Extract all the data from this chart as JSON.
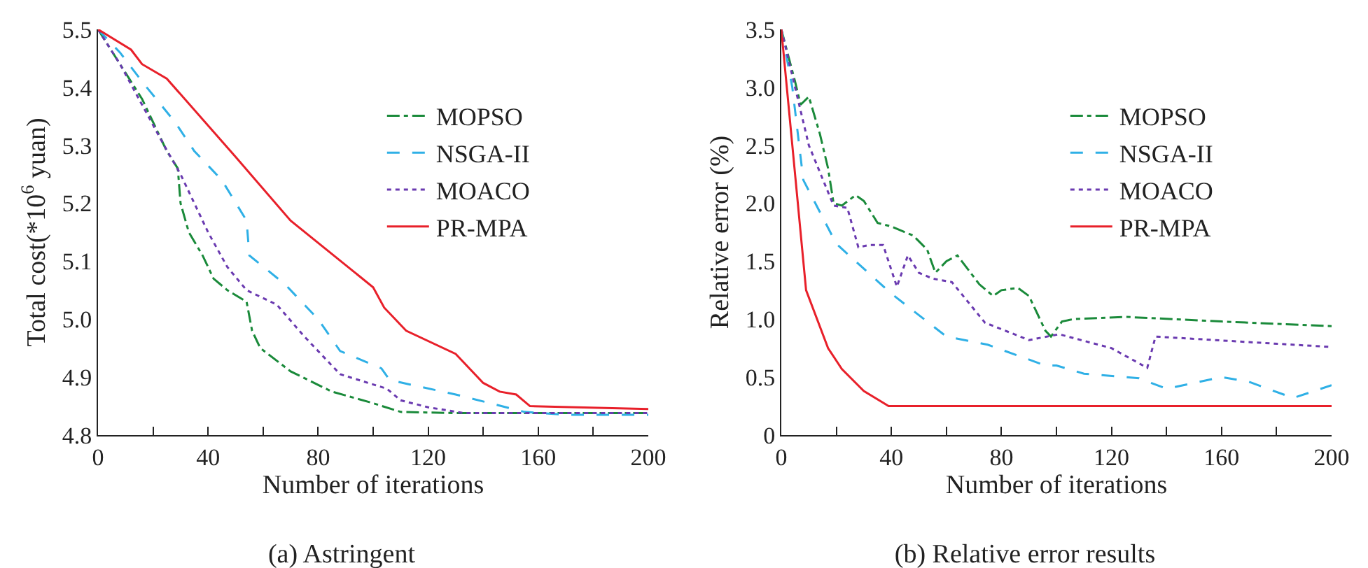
{
  "chart_data": [
    {
      "type": "line",
      "title": "(a) Astringent",
      "xlabel": "Number of iterations",
      "ylabel": "Total cost(*10$^{6}$ yuan)",
      "xlim": [
        0,
        200
      ],
      "ylim": [
        4.8,
        5.5
      ],
      "xticks": [
        0,
        {
          "value": 20,
          "label": null
        },
        40,
        {
          "value": 60,
          "label": null
        },
        80,
        {
          "value": 100,
          "label": null
        },
        120,
        {
          "value": 140,
          "label": null
        },
        160,
        {
          "value": 180,
          "label": null
        },
        200
      ],
      "yticks": [
        4.8,
        4.9,
        {
          "value": 5,
          "label": "5.0"
        },
        5.1,
        5.2,
        5.3,
        5.4,
        5.5
      ],
      "grid": false,
      "legend": "top right",
      "marker": "none",
      "series": [
        {
          "name": "MOPSO",
          "color": "#1a8a3a",
          "line_style": "dashdot",
          "x": [
            0,
            8,
            16,
            25,
            29,
            30,
            33,
            38,
            42,
            47,
            54,
            56,
            59,
            70,
            85,
            100,
            110,
            130,
            200
          ],
          "values": [
            5.5,
            5.44,
            5.38,
            5.29,
            5.26,
            5.2,
            5.15,
            5.11,
            5.07,
            5.05,
            5.03,
            4.98,
            4.95,
            4.91,
            4.875,
            4.855,
            4.84,
            4.838,
            4.838
          ]
        },
        {
          "name": "NSGA-II",
          "color": "#2fb0e6",
          "line_style": "dashed",
          "x": [
            0,
            8,
            16,
            28,
            35,
            45,
            54,
            55,
            68,
            80,
            88,
            103,
            106,
            130,
            155,
            170,
            200
          ],
          "values": [
            5.5,
            5.46,
            5.41,
            5.34,
            5.29,
            5.24,
            5.17,
            5.11,
            5.06,
            5.0,
            4.945,
            4.915,
            4.895,
            4.87,
            4.84,
            4.835,
            4.835
          ]
        },
        {
          "name": "MOACO",
          "color": "#6a3ab0",
          "line_style": "dotted",
          "x": [
            0,
            8,
            16,
            24,
            30,
            40,
            47,
            54,
            65,
            75,
            88,
            105,
            110,
            120,
            133,
            200
          ],
          "values": [
            5.5,
            5.44,
            5.37,
            5.3,
            5.25,
            5.15,
            5.09,
            5.05,
            5.025,
            4.97,
            4.905,
            4.88,
            4.86,
            4.848,
            4.838,
            4.838
          ]
        },
        {
          "name": "PR-MPA",
          "color": "#e8202a",
          "line_style": "solid",
          "x": [
            0,
            12,
            16,
            25,
            50,
            70,
            100,
            104,
            112,
            130,
            140,
            146,
            152,
            157,
            200
          ],
          "values": [
            5.5,
            5.465,
            5.44,
            5.415,
            5.28,
            5.17,
            5.055,
            5.02,
            4.98,
            4.94,
            4.89,
            4.875,
            4.87,
            4.85,
            4.845
          ]
        }
      ]
    },
    {
      "type": "line",
      "title": "(b) Relative error results",
      "xlabel": "Number of iterations",
      "ylabel": "Relative error (%)",
      "xlim": [
        0,
        200
      ],
      "ylim": [
        0,
        3.5
      ],
      "xticks": [
        0,
        {
          "value": 20,
          "label": null
        },
        40,
        {
          "value": 60,
          "label": null
        },
        80,
        {
          "value": 100,
          "label": null
        },
        120,
        {
          "value": 140,
          "label": null
        },
        160,
        {
          "value": 180,
          "label": null
        },
        200
      ],
      "yticks": [
        0,
        0.5,
        {
          "value": 1,
          "label": "1.0"
        },
        1.5,
        {
          "value": 2,
          "label": "2.0"
        },
        2.5,
        {
          "value": 3,
          "label": "3.0"
        },
        3.5
      ],
      "grid": false,
      "legend": "top right",
      "marker": "none",
      "series": [
        {
          "name": "MOPSO",
          "color": "#1a8a3a",
          "line_style": "dashdot",
          "x": [
            0,
            5,
            7,
            10,
            14,
            17,
            19,
            22,
            27,
            30,
            35,
            40,
            48,
            53,
            56,
            60,
            64,
            72,
            77,
            80,
            86,
            90,
            96,
            98,
            102,
            106,
            125,
            160,
            200
          ],
          "values": [
            3.5,
            3.05,
            2.85,
            2.92,
            2.6,
            2.3,
            2.0,
            1.98,
            2.07,
            2.02,
            1.83,
            1.8,
            1.72,
            1.6,
            1.4,
            1.5,
            1.55,
            1.3,
            1.2,
            1.25,
            1.27,
            1.2,
            0.9,
            0.85,
            0.98,
            1.0,
            1.02,
            0.98,
            0.94
          ]
        },
        {
          "name": "NSGA-II",
          "color": "#2fb0e6",
          "line_style": "dashed",
          "x": [
            0,
            4,
            8,
            20,
            40,
            60,
            75,
            96,
            100,
            110,
            130,
            140,
            160,
            170,
            186,
            200
          ],
          "values": [
            3.5,
            3.0,
            2.2,
            1.65,
            1.22,
            0.85,
            0.78,
            0.6,
            0.6,
            0.53,
            0.49,
            0.4,
            0.5,
            0.46,
            0.32,
            0.43
          ]
        },
        {
          "name": "MOACO",
          "color": "#6a3ab0",
          "line_style": "dotted",
          "x": [
            0,
            5,
            10,
            19,
            24,
            28,
            32,
            37,
            42,
            46,
            50,
            55,
            62,
            74,
            90,
            101,
            120,
            133,
            136,
            200
          ],
          "values": [
            3.5,
            3.0,
            2.5,
            1.98,
            1.96,
            1.62,
            1.64,
            1.64,
            1.28,
            1.55,
            1.4,
            1.35,
            1.32,
            0.97,
            0.82,
            0.87,
            0.75,
            0.58,
            0.85,
            0.76
          ]
        },
        {
          "name": "PR-MPA",
          "color": "#e8202a",
          "line_style": "solid",
          "x": [
            0,
            9,
            17,
            22,
            30,
            39,
            200
          ],
          "values": [
            3.5,
            1.25,
            0.75,
            0.57,
            0.38,
            0.25,
            0.25
          ]
        }
      ]
    }
  ]
}
